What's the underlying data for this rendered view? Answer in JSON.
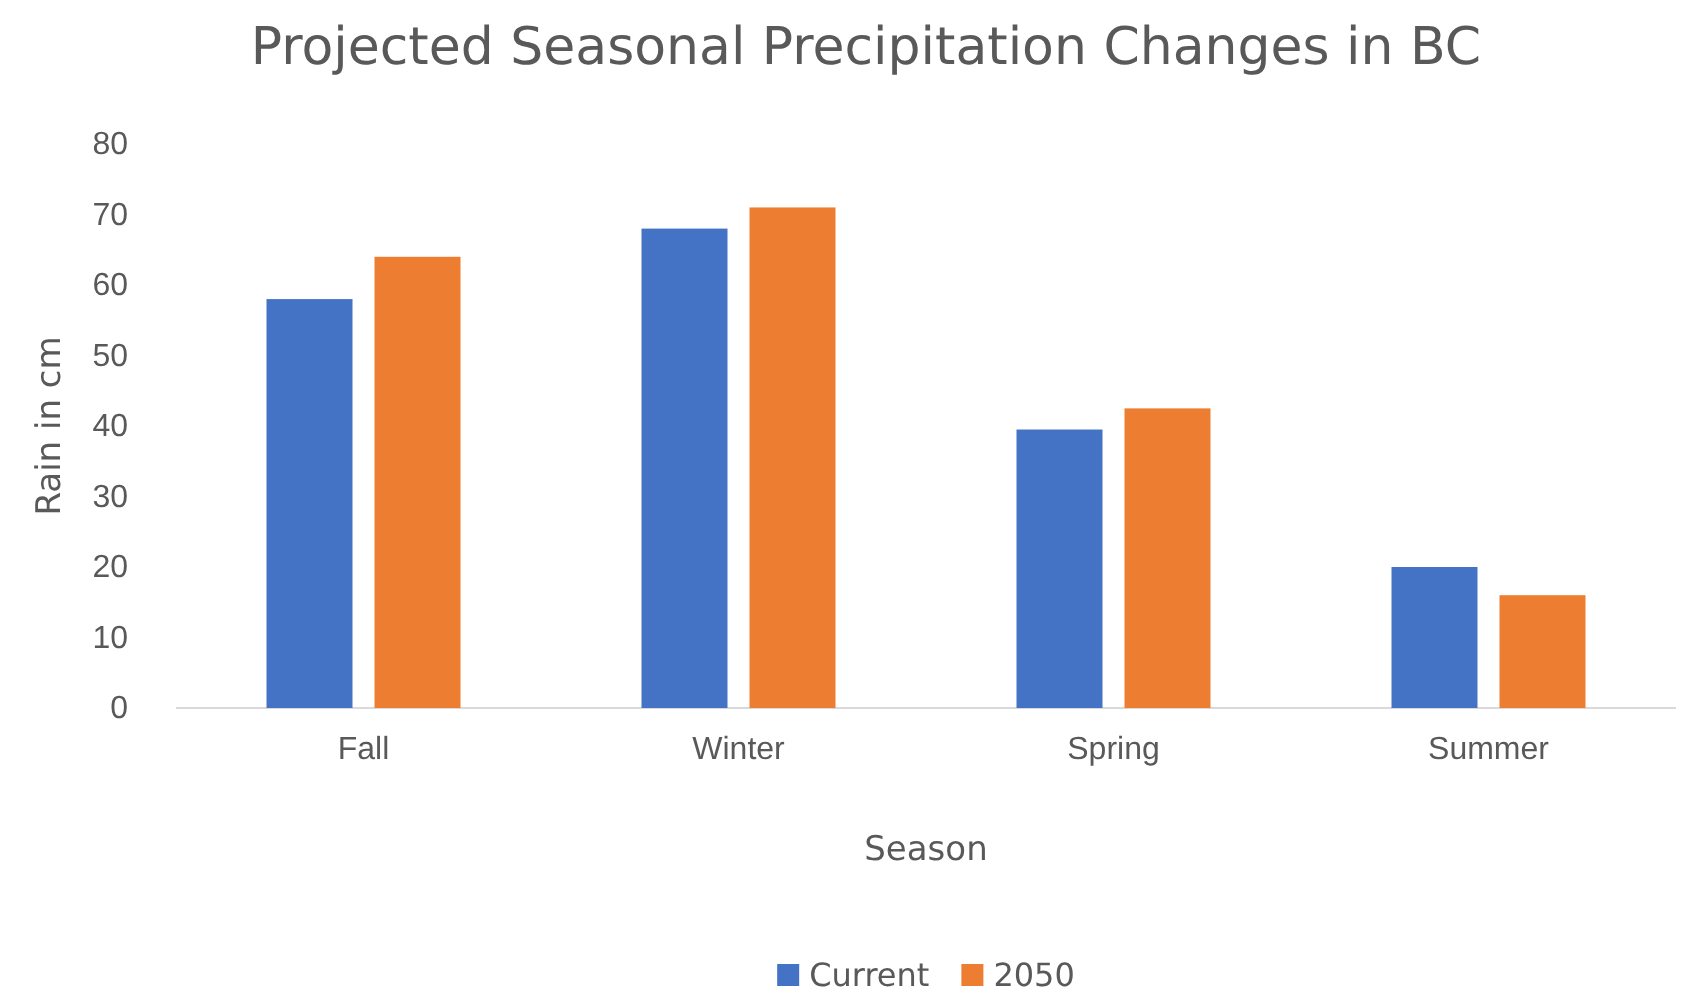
{
  "chart_data": {
    "type": "bar",
    "title": "Projected Seasonal Precipitation Changes in BC",
    "xlabel": "Season",
    "ylabel": "Rain in cm",
    "categories": [
      "Fall",
      "Winter",
      "Spring",
      "Summer"
    ],
    "series": [
      {
        "name": "Current",
        "color": "#4472c4",
        "values": [
          58,
          68,
          39.5,
          20
        ]
      },
      {
        "name": "2050",
        "color": "#ed7d31",
        "values": [
          64,
          71,
          42.5,
          16
        ]
      }
    ],
    "ylim": [
      0,
      80
    ],
    "yticks": [
      0,
      10,
      20,
      30,
      40,
      50,
      60,
      70,
      80
    ],
    "grid": false,
    "legend": "bottom"
  }
}
